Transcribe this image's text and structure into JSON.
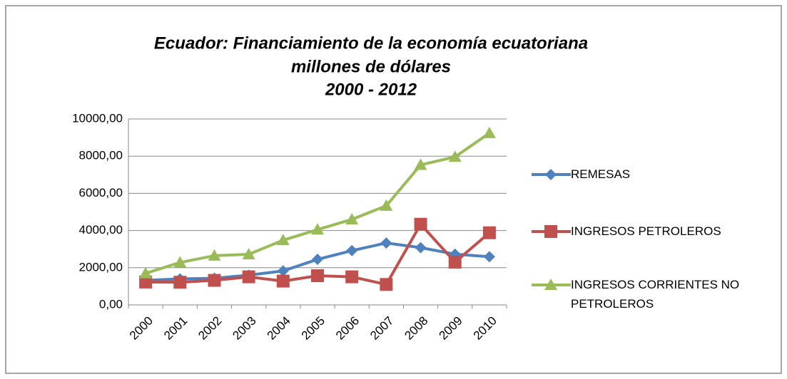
{
  "chart_data": {
    "type": "line",
    "title": [
      "Ecuador: Financiamiento de la economía ecuatoriana",
      "millones de dólares",
      "2000 - 2012"
    ],
    "categories": [
      "2000",
      "2001",
      "2002",
      "2003",
      "2004",
      "2005",
      "2006",
      "2007",
      "2008",
      "2009",
      "2010"
    ],
    "series": [
      {
        "name": "REMESAS",
        "color": "#4f81bd",
        "marker": "diamond",
        "values": [
          1320,
          1400,
          1430,
          1600,
          1830,
          2450,
          2920,
          3330,
          3080,
          2730,
          2590
        ]
      },
      {
        "name": "INGRESOS PETROLEROS",
        "color": "#c0504d",
        "marker": "square",
        "values": [
          1230,
          1220,
          1320,
          1510,
          1280,
          1570,
          1510,
          1100,
          4340,
          2300,
          3880
        ]
      },
      {
        "name": "INGRESOS CORRIENTES NO PETROLEROS",
        "color": "#9bbb59",
        "marker": "triangle",
        "values": [
          1700,
          2280,
          2650,
          2720,
          3480,
          4050,
          4600,
          5330,
          7530,
          7960,
          9240
        ]
      }
    ],
    "ylim": [
      0,
      10000
    ],
    "yticks": [
      {
        "value": 0,
        "label": "0,00"
      },
      {
        "value": 2000,
        "label": "2000,00"
      },
      {
        "value": 4000,
        "label": "4000,00"
      },
      {
        "value": 6000,
        "label": "6000,00"
      },
      {
        "value": 8000,
        "label": "8000,00"
      },
      {
        "value": 10000,
        "label": "10000,00"
      }
    ],
    "grid": true,
    "legend": "right"
  }
}
